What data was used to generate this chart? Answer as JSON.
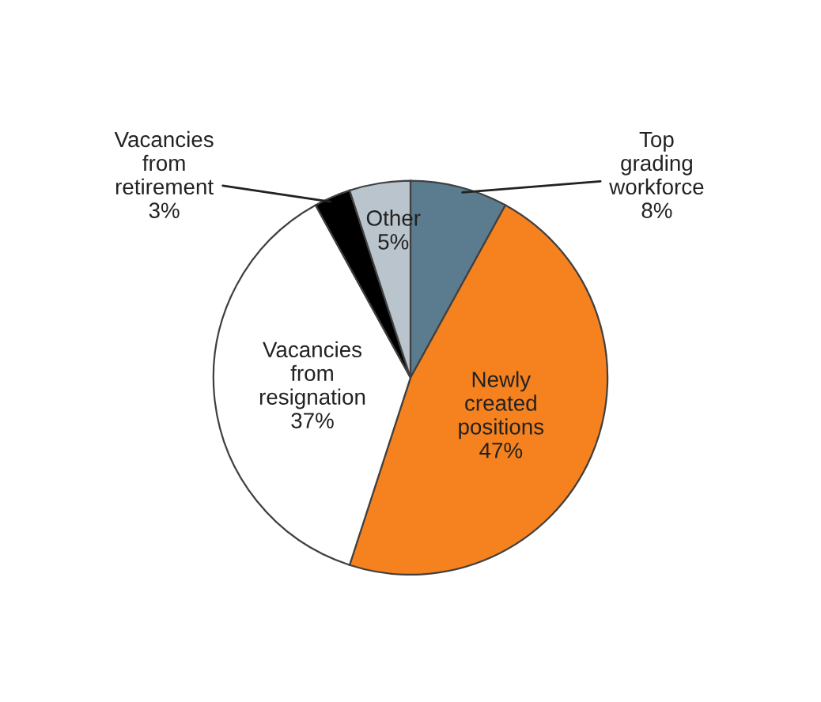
{
  "chart_data": {
    "type": "pie",
    "categories": [
      "Top grading workforce",
      "Newly created positions",
      "Vacancies from resignation",
      "Vacancies from retirement",
      "Other"
    ],
    "values": [
      8,
      47,
      37,
      3,
      5
    ],
    "colors": [
      "#5b7b8e",
      "#f5821f",
      "#ffffff",
      "#000000",
      "#b9c4cc"
    ],
    "value_labels": [
      "8%",
      "47%",
      "37%",
      "3%",
      "5%"
    ],
    "legend": false
  }
}
